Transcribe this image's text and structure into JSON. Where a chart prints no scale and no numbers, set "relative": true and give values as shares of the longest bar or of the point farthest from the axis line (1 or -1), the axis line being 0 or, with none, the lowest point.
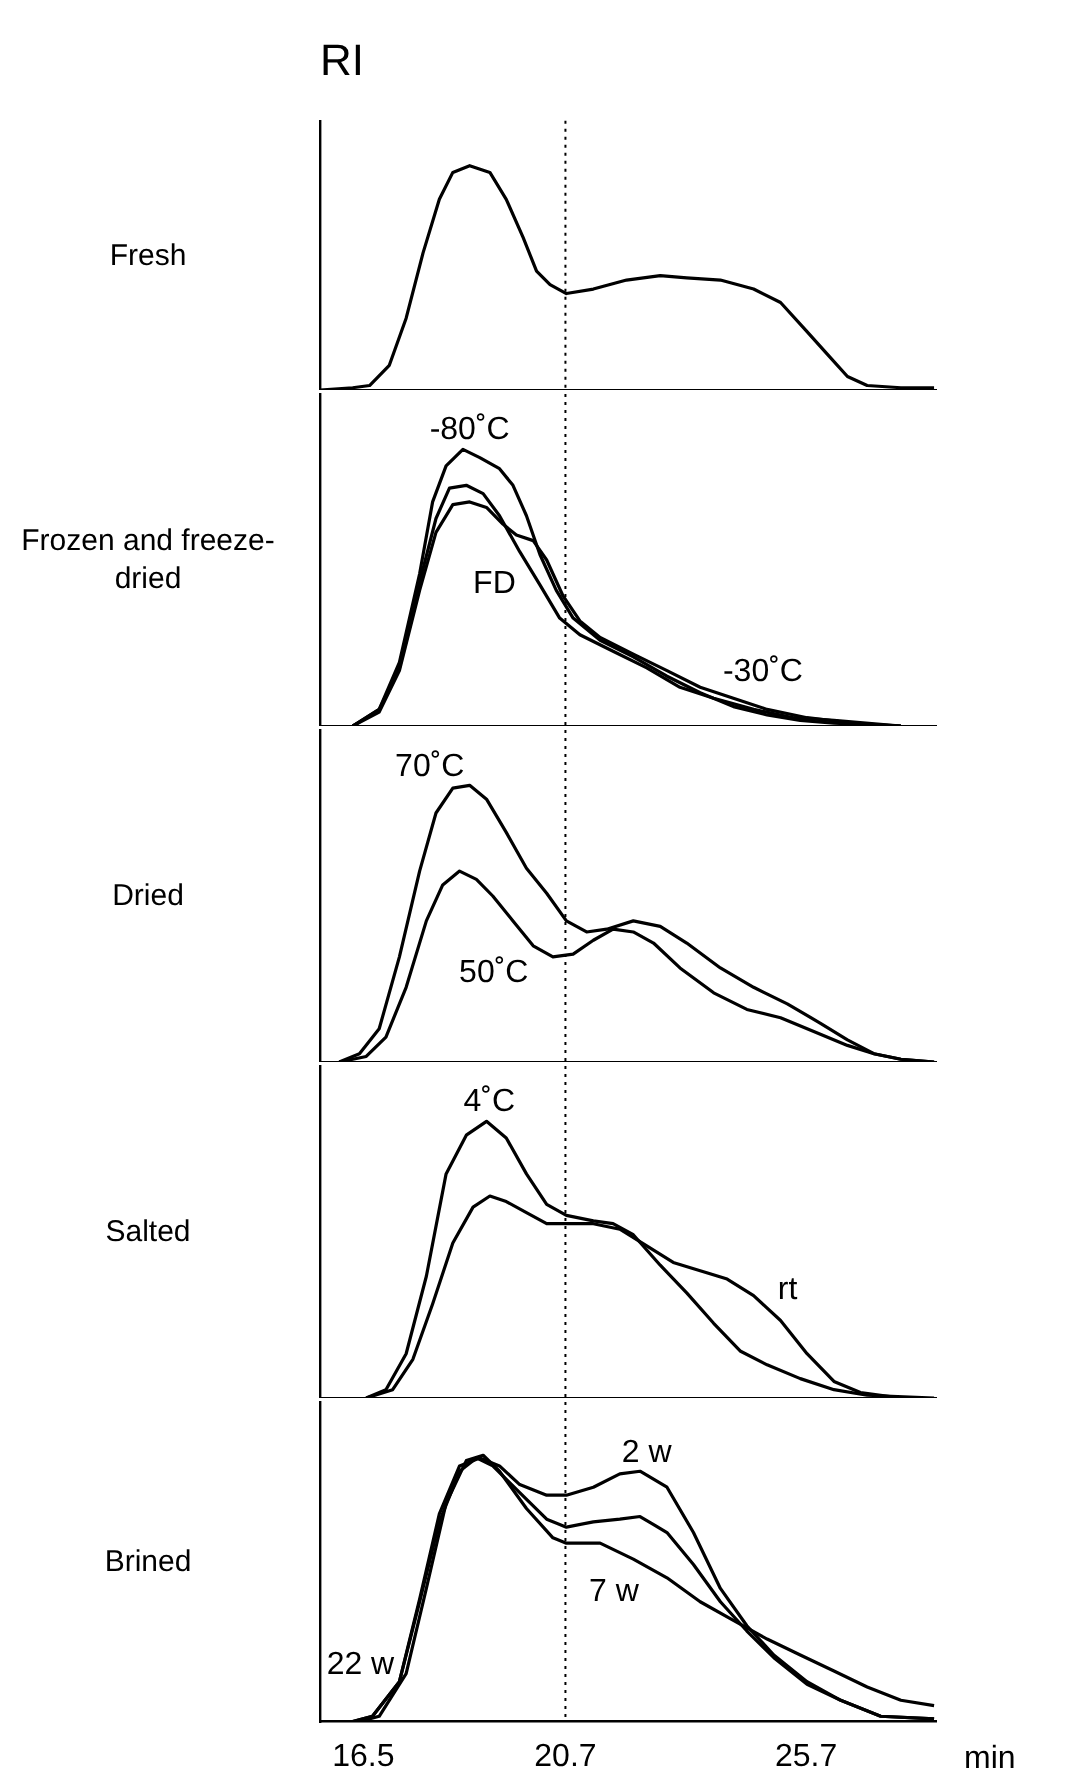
{
  "chart_data": [
    {
      "type": "line",
      "title": "RI",
      "ylabel": "Fresh",
      "relative": true,
      "marker": "none",
      "tick_labels": false,
      "xlim": [
        15.6,
        28.4
      ],
      "ref_lines": [
        {
          "axis": "x",
          "value": 20.7,
          "line_style": "dotted"
        }
      ],
      "series": [
        {
          "color": "#000000",
          "x": [
            15.6,
            16.28,
            16.63,
            17.04,
            17.39,
            17.74,
            18.08,
            18.36,
            18.71,
            19.13,
            19.47,
            19.82,
            20.1,
            20.38,
            20.72,
            21.28,
            21.97,
            22.67,
            23.22,
            23.92,
            24.61,
            25.17,
            25.72,
            26.14,
            26.56,
            26.97,
            27.67,
            28.36
          ],
          "values": [
            0,
            0.01,
            0.02,
            0.11,
            0.32,
            0.61,
            0.85,
            0.97,
            1,
            0.97,
            0.85,
            0.68,
            0.53,
            0.47,
            0.43,
            0.45,
            0.49,
            0.51,
            0.5,
            0.49,
            0.45,
            0.39,
            0.26,
            0.16,
            0.06,
            0.02,
            0.01,
            0.01
          ]
        }
      ]
    },
    {
      "type": "line",
      "ylabel": "Frozen and freeze-dried",
      "relative": true,
      "marker": "none",
      "tick_labels": false,
      "xlim": [
        15.6,
        28.4
      ],
      "ref_lines": [
        {
          "axis": "x",
          "value": 20.7,
          "line_style": "dotted"
        }
      ],
      "series": [
        {
          "name": "-80˚C",
          "color": "#000000",
          "x": [
            16.28,
            16.83,
            17.25,
            17.67,
            17.94,
            18.22,
            18.57,
            18.92,
            19.33,
            19.61,
            19.89,
            20.17,
            20.51,
            20.86,
            21.42,
            22.11,
            22.81,
            23.5,
            24.19,
            24.89,
            25.58,
            26.28,
            27.67
          ],
          "values": [
            0,
            0.06,
            0.23,
            0.55,
            0.81,
            0.94,
            1,
            0.97,
            0.93,
            0.87,
            0.76,
            0.62,
            0.49,
            0.39,
            0.31,
            0.25,
            0.18,
            0.12,
            0.07,
            0.04,
            0.02,
            0.01,
            0
          ]
        },
        {
          "name": "FD",
          "color": "#000000",
          "x": [
            16.28,
            16.83,
            17.25,
            17.67,
            18.01,
            18.29,
            18.64,
            18.99,
            19.33,
            19.75,
            20.17,
            20.58,
            21.0,
            21.69,
            22.39,
            23.08,
            23.78,
            24.61,
            25.44,
            26.28,
            27.67
          ],
          "values": [
            0,
            0.06,
            0.21,
            0.52,
            0.75,
            0.86,
            0.87,
            0.84,
            0.76,
            0.63,
            0.51,
            0.39,
            0.33,
            0.27,
            0.21,
            0.14,
            0.1,
            0.06,
            0.03,
            0.02,
            0
          ]
        },
        {
          "name": "-30˚C",
          "color": "#000000",
          "x": [
            16.28,
            16.83,
            17.25,
            17.67,
            18.01,
            18.36,
            18.71,
            19.06,
            19.4,
            19.68,
            20.03,
            20.31,
            20.65,
            21.0,
            21.42,
            22.11,
            22.81,
            23.5,
            24.19,
            24.89,
            25.72,
            26.69,
            27.67
          ],
          "values": [
            0,
            0.05,
            0.2,
            0.49,
            0.7,
            0.8,
            0.81,
            0.79,
            0.73,
            0.69,
            0.67,
            0.6,
            0.47,
            0.38,
            0.32,
            0.26,
            0.2,
            0.14,
            0.1,
            0.06,
            0.03,
            0.01,
            0
          ]
        }
      ]
    },
    {
      "type": "line",
      "ylabel": "Dried",
      "relative": true,
      "marker": "none",
      "tick_labels": false,
      "xlim": [
        15.6,
        28.4
      ],
      "ref_lines": [
        {
          "axis": "x",
          "value": 20.7,
          "line_style": "dotted"
        }
      ],
      "series": [
        {
          "name": "70˚C",
          "color": "#000000",
          "x": [
            16.0,
            16.42,
            16.83,
            17.25,
            17.67,
            18.01,
            18.36,
            18.71,
            19.06,
            19.47,
            19.89,
            20.31,
            20.72,
            21.14,
            21.56,
            22.11,
            22.67,
            23.22,
            23.92,
            24.61,
            25.31,
            26.0,
            26.56,
            27.11,
            27.67,
            28.36
          ],
          "values": [
            0,
            0.03,
            0.12,
            0.38,
            0.69,
            0.9,
            0.99,
            1,
            0.95,
            0.83,
            0.7,
            0.61,
            0.51,
            0.47,
            0.48,
            0.51,
            0.49,
            0.43,
            0.34,
            0.27,
            0.21,
            0.14,
            0.08,
            0.03,
            0.01,
            0
          ]
        },
        {
          "name": "50˚C",
          "color": "#000000",
          "x": [
            16.0,
            16.56,
            16.97,
            17.39,
            17.81,
            18.15,
            18.5,
            18.85,
            19.19,
            19.61,
            20.03,
            20.44,
            20.86,
            21.28,
            21.69,
            22.11,
            22.53,
            23.08,
            23.78,
            24.47,
            25.17,
            25.86,
            26.56,
            27.11,
            27.67,
            28.36
          ],
          "values": [
            0,
            0.02,
            0.09,
            0.27,
            0.51,
            0.64,
            0.69,
            0.66,
            0.6,
            0.51,
            0.42,
            0.38,
            0.39,
            0.44,
            0.48,
            0.47,
            0.43,
            0.34,
            0.25,
            0.19,
            0.16,
            0.11,
            0.06,
            0.03,
            0.01,
            0
          ]
        }
      ]
    },
    {
      "type": "line",
      "ylabel": "Salted",
      "relative": true,
      "marker": "none",
      "tick_labels": false,
      "xlim": [
        15.6,
        28.4
      ],
      "ref_lines": [
        {
          "axis": "x",
          "value": 20.7,
          "line_style": "dotted"
        }
      ],
      "series": [
        {
          "name": "4˚C",
          "color": "#000000",
          "x": [
            16.56,
            16.97,
            17.39,
            17.81,
            18.22,
            18.64,
            19.06,
            19.47,
            19.89,
            20.31,
            20.72,
            21.28,
            21.69,
            22.11,
            22.67,
            23.22,
            23.78,
            24.33,
            24.89,
            25.58,
            26.28,
            26.97,
            28.36
          ],
          "values": [
            0,
            0.03,
            0.16,
            0.44,
            0.81,
            0.95,
            1,
            0.94,
            0.81,
            0.7,
            0.66,
            0.64,
            0.63,
            0.59,
            0.48,
            0.38,
            0.27,
            0.17,
            0.12,
            0.07,
            0.03,
            0.01,
            0
          ]
        },
        {
          "name": "rt",
          "color": "#000000",
          "x": [
            16.56,
            17.11,
            17.53,
            17.94,
            18.36,
            18.78,
            19.13,
            19.47,
            19.89,
            20.31,
            20.72,
            21.28,
            21.83,
            22.39,
            22.94,
            23.5,
            24.06,
            24.61,
            25.17,
            25.72,
            26.28,
            26.83,
            27.67
          ],
          "values": [
            0,
            0.03,
            0.14,
            0.34,
            0.56,
            0.69,
            0.73,
            0.71,
            0.67,
            0.63,
            0.63,
            0.63,
            0.61,
            0.55,
            0.49,
            0.46,
            0.43,
            0.37,
            0.28,
            0.16,
            0.06,
            0.02,
            0
          ]
        }
      ]
    },
    {
      "type": "line",
      "ylabel": "Brined",
      "xlabel": "min",
      "relative": true,
      "marker": "none",
      "tick_labels": "x",
      "xlim": [
        15.6,
        28.4
      ],
      "xticks": [
        16.5,
        20.7,
        25.7
      ],
      "ref_lines": [
        {
          "axis": "x",
          "value": 20.7,
          "line_style": "dotted"
        }
      ],
      "series": [
        {
          "name": "2 w",
          "color": "#000000",
          "x": [
            16.28,
            16.69,
            17.25,
            17.67,
            18.08,
            18.5,
            18.92,
            19.33,
            19.75,
            20.31,
            20.72,
            21.28,
            21.83,
            22.25,
            22.81,
            23.36,
            23.92,
            24.47,
            25.03,
            25.72,
            26.42,
            27.25,
            28.36
          ],
          "values": [
            0,
            0.02,
            0.15,
            0.46,
            0.78,
            0.96,
            0.99,
            0.96,
            0.89,
            0.85,
            0.85,
            0.88,
            0.93,
            0.94,
            0.88,
            0.71,
            0.5,
            0.36,
            0.25,
            0.15,
            0.08,
            0.02,
            0.01
          ]
        },
        {
          "name": "22 w",
          "color": "#000000",
          "x": [
            16.28,
            16.69,
            17.25,
            17.67,
            18.08,
            18.5,
            18.85,
            19.19,
            19.75,
            20.31,
            20.72,
            21.28,
            21.83,
            22.25,
            22.81,
            23.36,
            23.92,
            24.47,
            25.03,
            25.72,
            26.42,
            27.25,
            28.36
          ],
          "values": [
            0,
            0.02,
            0.15,
            0.45,
            0.75,
            0.94,
            0.99,
            0.96,
            0.86,
            0.76,
            0.73,
            0.75,
            0.76,
            0.77,
            0.71,
            0.59,
            0.45,
            0.34,
            0.24,
            0.14,
            0.08,
            0.02,
            0.01
          ]
        },
        {
          "name": "7 w",
          "color": "#000000",
          "x": [
            16.42,
            16.83,
            17.39,
            17.81,
            18.22,
            18.64,
            18.99,
            19.33,
            19.89,
            20.44,
            20.72,
            21.42,
            22.11,
            22.81,
            23.5,
            24.19,
            24.89,
            25.58,
            26.28,
            26.97,
            27.67,
            28.36
          ],
          "values": [
            0,
            0.02,
            0.18,
            0.5,
            0.82,
            0.98,
            1,
            0.94,
            0.8,
            0.69,
            0.67,
            0.67,
            0.61,
            0.54,
            0.45,
            0.38,
            0.31,
            0.25,
            0.19,
            0.13,
            0.08,
            0.06
          ]
        }
      ]
    }
  ]
}
